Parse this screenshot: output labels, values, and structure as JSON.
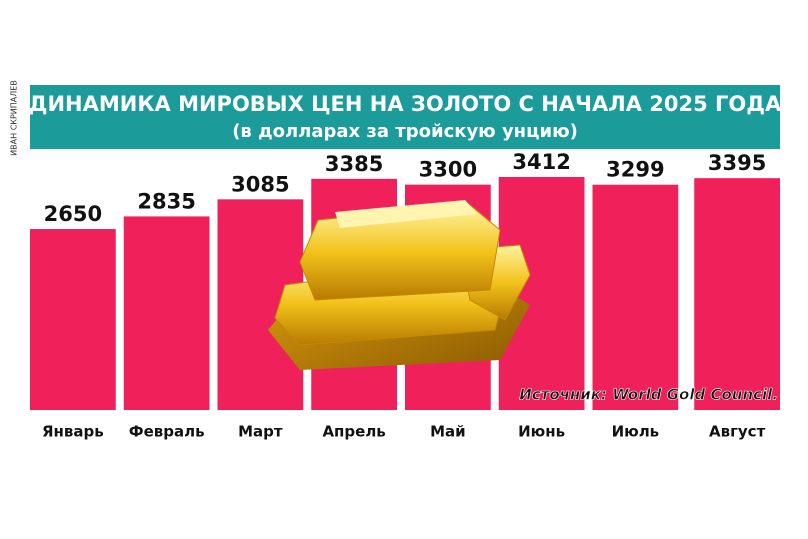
{
  "chart_data": {
    "type": "bar",
    "title": "ДИНАМИКА МИРОВЫХ ЦЕН НА ЗОЛОТО С НАЧАЛА 2025 ГОДА",
    "subtitle": "(в долларах за тройскую унцию)",
    "source": "Источник: World Gold Council.",
    "author": "ИВАН СКРИПАЛЕВ",
    "categories": [
      "Январь",
      "Февраль",
      "Март",
      "Апрель",
      "Май",
      "Июнь",
      "Июль",
      "Август"
    ],
    "values": [
      2650,
      2835,
      3085,
      3385,
      3300,
      3412,
      3299,
      3395
    ],
    "color": "#f0215a"
  }
}
